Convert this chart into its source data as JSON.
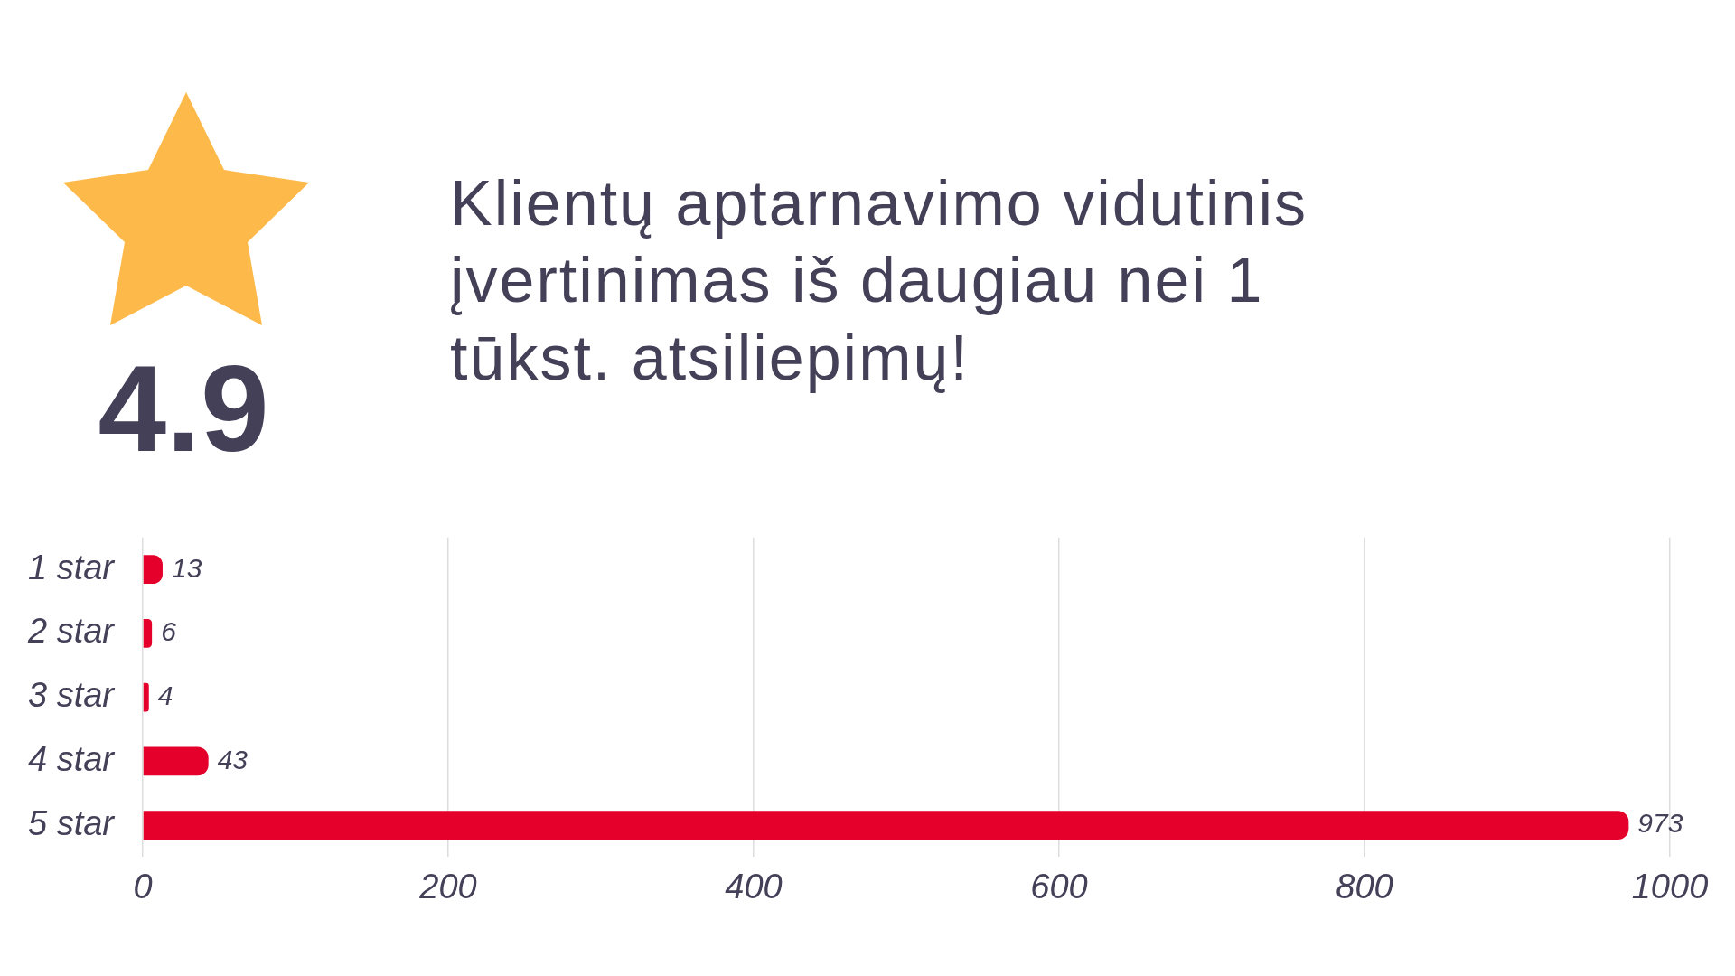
{
  "chart_data": {
    "type": "bar",
    "orientation": "horizontal",
    "title": "Klientų aptarnavimo vidutinis įvertinimas iš daugiau nei 1 tūkst. atsiliepimų!",
    "annotations": [
      "4.9"
    ],
    "categories": [
      "1 star",
      "2 star",
      "3 star",
      "4 star",
      "5 star"
    ],
    "values": [
      13,
      6,
      4,
      43,
      973
    ],
    "color": "#e4002b",
    "xlim": [
      0,
      1000
    ],
    "xticks": [
      0,
      200,
      400,
      600,
      800,
      1000
    ],
    "grid": "x",
    "legend": false,
    "data_labels": true
  }
}
